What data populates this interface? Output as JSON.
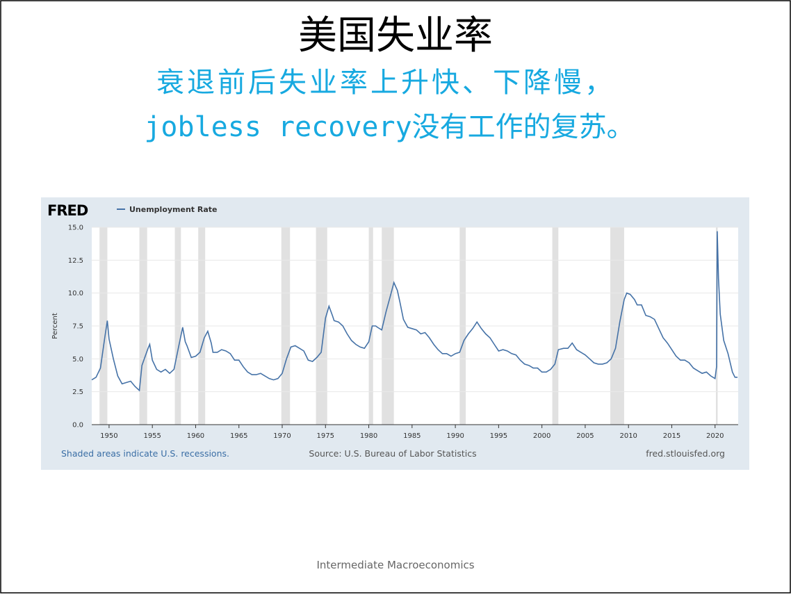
{
  "slide": {
    "title": "美国失业率",
    "subtitle": [
      "衰退前后失业率上升快、下降慢，",
      "jobless recovery没有工作的复苏。"
    ],
    "footer": "Intermediate Macroeconomics"
  },
  "chart_data": {
    "type": "line",
    "logo": "FRED",
    "ylabel": "Percent",
    "notes": [
      "Shaded areas indicate U.S. recessions.",
      "Source: U.S. Bureau of Labor Statistics",
      "fred.stlouisfed.org"
    ],
    "x": [
      1948.0,
      1948.5,
      1949.0,
      1949.5,
      1949.8,
      1950.0,
      1950.5,
      1951.0,
      1951.5,
      1952.0,
      1952.5,
      1953.0,
      1953.5,
      1953.8,
      1954.5,
      1954.7,
      1955.0,
      1955.5,
      1956.0,
      1956.5,
      1957.0,
      1957.5,
      1958.0,
      1958.5,
      1958.8,
      1959.0,
      1959.5,
      1960.0,
      1960.5,
      1961.0,
      1961.4,
      1961.8,
      1962.0,
      1962.5,
      1963.0,
      1963.5,
      1964.0,
      1964.5,
      1965.0,
      1965.5,
      1966.0,
      1966.5,
      1967.0,
      1967.5,
      1968.0,
      1968.5,
      1969.0,
      1969.5,
      1970.0,
      1970.5,
      1971.0,
      1971.5,
      1972.0,
      1972.5,
      1973.0,
      1973.5,
      1974.0,
      1974.5,
      1975.0,
      1975.4,
      1975.8,
      1976.0,
      1976.5,
      1977.0,
      1977.5,
      1978.0,
      1978.5,
      1979.0,
      1979.5,
      1980.0,
      1980.4,
      1980.8,
      1981.0,
      1981.5,
      1982.0,
      1982.5,
      1982.9,
      1983.3,
      1983.6,
      1984.0,
      1984.5,
      1985.0,
      1985.5,
      1986.0,
      1986.5,
      1987.0,
      1987.5,
      1988.0,
      1988.5,
      1989.0,
      1989.5,
      1990.0,
      1990.5,
      1991.0,
      1991.5,
      1992.0,
      1992.5,
      1993.0,
      1993.5,
      1994.0,
      1994.5,
      1995.0,
      1995.5,
      1996.0,
      1996.5,
      1997.0,
      1997.5,
      1998.0,
      1998.5,
      1999.0,
      1999.5,
      2000.0,
      2000.5,
      2001.0,
      2001.5,
      2001.9,
      2002.5,
      2003.0,
      2003.5,
      2004.0,
      2004.5,
      2005.0,
      2005.5,
      2006.0,
      2006.5,
      2007.0,
      2007.5,
      2008.0,
      2008.5,
      2009.0,
      2009.5,
      2009.8,
      2010.2,
      2010.7,
      2011.0,
      2011.5,
      2012.0,
      2012.5,
      2013.0,
      2013.5,
      2014.0,
      2014.5,
      2015.0,
      2015.5,
      2016.0,
      2016.5,
      2017.0,
      2017.5,
      2018.0,
      2018.5,
      2019.0,
      2019.5,
      2020.0,
      2020.17,
      2020.25,
      2020.4,
      2020.6,
      2021.0,
      2021.5,
      2022.0,
      2022.3,
      2022.6
    ],
    "series": [
      {
        "name": "Unemployment Rate",
        "color": "#4572a7",
        "values": [
          3.4,
          3.6,
          4.3,
          6.6,
          7.9,
          6.5,
          5.0,
          3.7,
          3.1,
          3.2,
          3.3,
          2.9,
          2.6,
          4.5,
          5.8,
          6.1,
          4.9,
          4.2,
          4.0,
          4.2,
          3.9,
          4.2,
          5.8,
          7.4,
          6.3,
          6.0,
          5.1,
          5.2,
          5.5,
          6.6,
          7.1,
          6.2,
          5.5,
          5.5,
          5.7,
          5.6,
          5.4,
          4.9,
          4.9,
          4.4,
          4.0,
          3.8,
          3.8,
          3.9,
          3.7,
          3.5,
          3.4,
          3.5,
          3.9,
          5.0,
          5.9,
          6.0,
          5.8,
          5.6,
          4.9,
          4.8,
          5.1,
          5.5,
          8.1,
          9.0,
          8.3,
          7.9,
          7.8,
          7.5,
          6.9,
          6.4,
          6.1,
          5.9,
          5.8,
          6.3,
          7.5,
          7.5,
          7.4,
          7.2,
          8.6,
          9.8,
          10.8,
          10.2,
          9.3,
          8.0,
          7.4,
          7.3,
          7.2,
          6.9,
          7.0,
          6.6,
          6.1,
          5.7,
          5.4,
          5.4,
          5.2,
          5.4,
          5.5,
          6.4,
          6.9,
          7.3,
          7.8,
          7.3,
          6.9,
          6.6,
          6.1,
          5.6,
          5.7,
          5.6,
          5.4,
          5.3,
          4.9,
          4.6,
          4.5,
          4.3,
          4.3,
          4.0,
          4.0,
          4.2,
          4.6,
          5.7,
          5.8,
          5.8,
          6.2,
          5.7,
          5.5,
          5.3,
          5.0,
          4.7,
          4.6,
          4.6,
          4.7,
          5.0,
          5.8,
          7.8,
          9.5,
          10.0,
          9.9,
          9.5,
          9.1,
          9.1,
          8.3,
          8.2,
          8.0,
          7.3,
          6.6,
          6.2,
          5.7,
          5.2,
          4.9,
          4.9,
          4.7,
          4.3,
          4.1,
          3.9,
          4.0,
          3.7,
          3.5,
          4.4,
          14.7,
          11.1,
          8.4,
          6.4,
          5.4,
          4.0,
          3.6,
          3.6
        ]
      }
    ],
    "recessions": [
      [
        1948.9,
        1949.8
      ],
      [
        1953.5,
        1954.4
      ],
      [
        1957.6,
        1958.3
      ],
      [
        1960.3,
        1961.1
      ],
      [
        1969.9,
        1970.9
      ],
      [
        1973.9,
        1975.2
      ],
      [
        1980.0,
        1980.5
      ],
      [
        1981.5,
        1982.9
      ],
      [
        1990.5,
        1991.2
      ],
      [
        2001.2,
        2001.9
      ],
      [
        2007.9,
        2009.5
      ],
      [
        2020.1,
        2020.3
      ]
    ],
    "xlim": [
      1948.0,
      2022.67
    ],
    "xticks": [
      1950,
      1955,
      1960,
      1965,
      1970,
      1975,
      1980,
      1985,
      1990,
      1995,
      2000,
      2005,
      2010,
      2015,
      2020
    ],
    "ylim": [
      0,
      15
    ],
    "yticks": [
      {
        "value": 0,
        "label": "0.0"
      },
      2.5,
      {
        "value": 5,
        "label": "5.0"
      },
      7.5,
      {
        "value": 10,
        "label": "10.0"
      },
      12.5,
      {
        "value": 15,
        "label": "15.0"
      }
    ],
    "grid": true
  }
}
